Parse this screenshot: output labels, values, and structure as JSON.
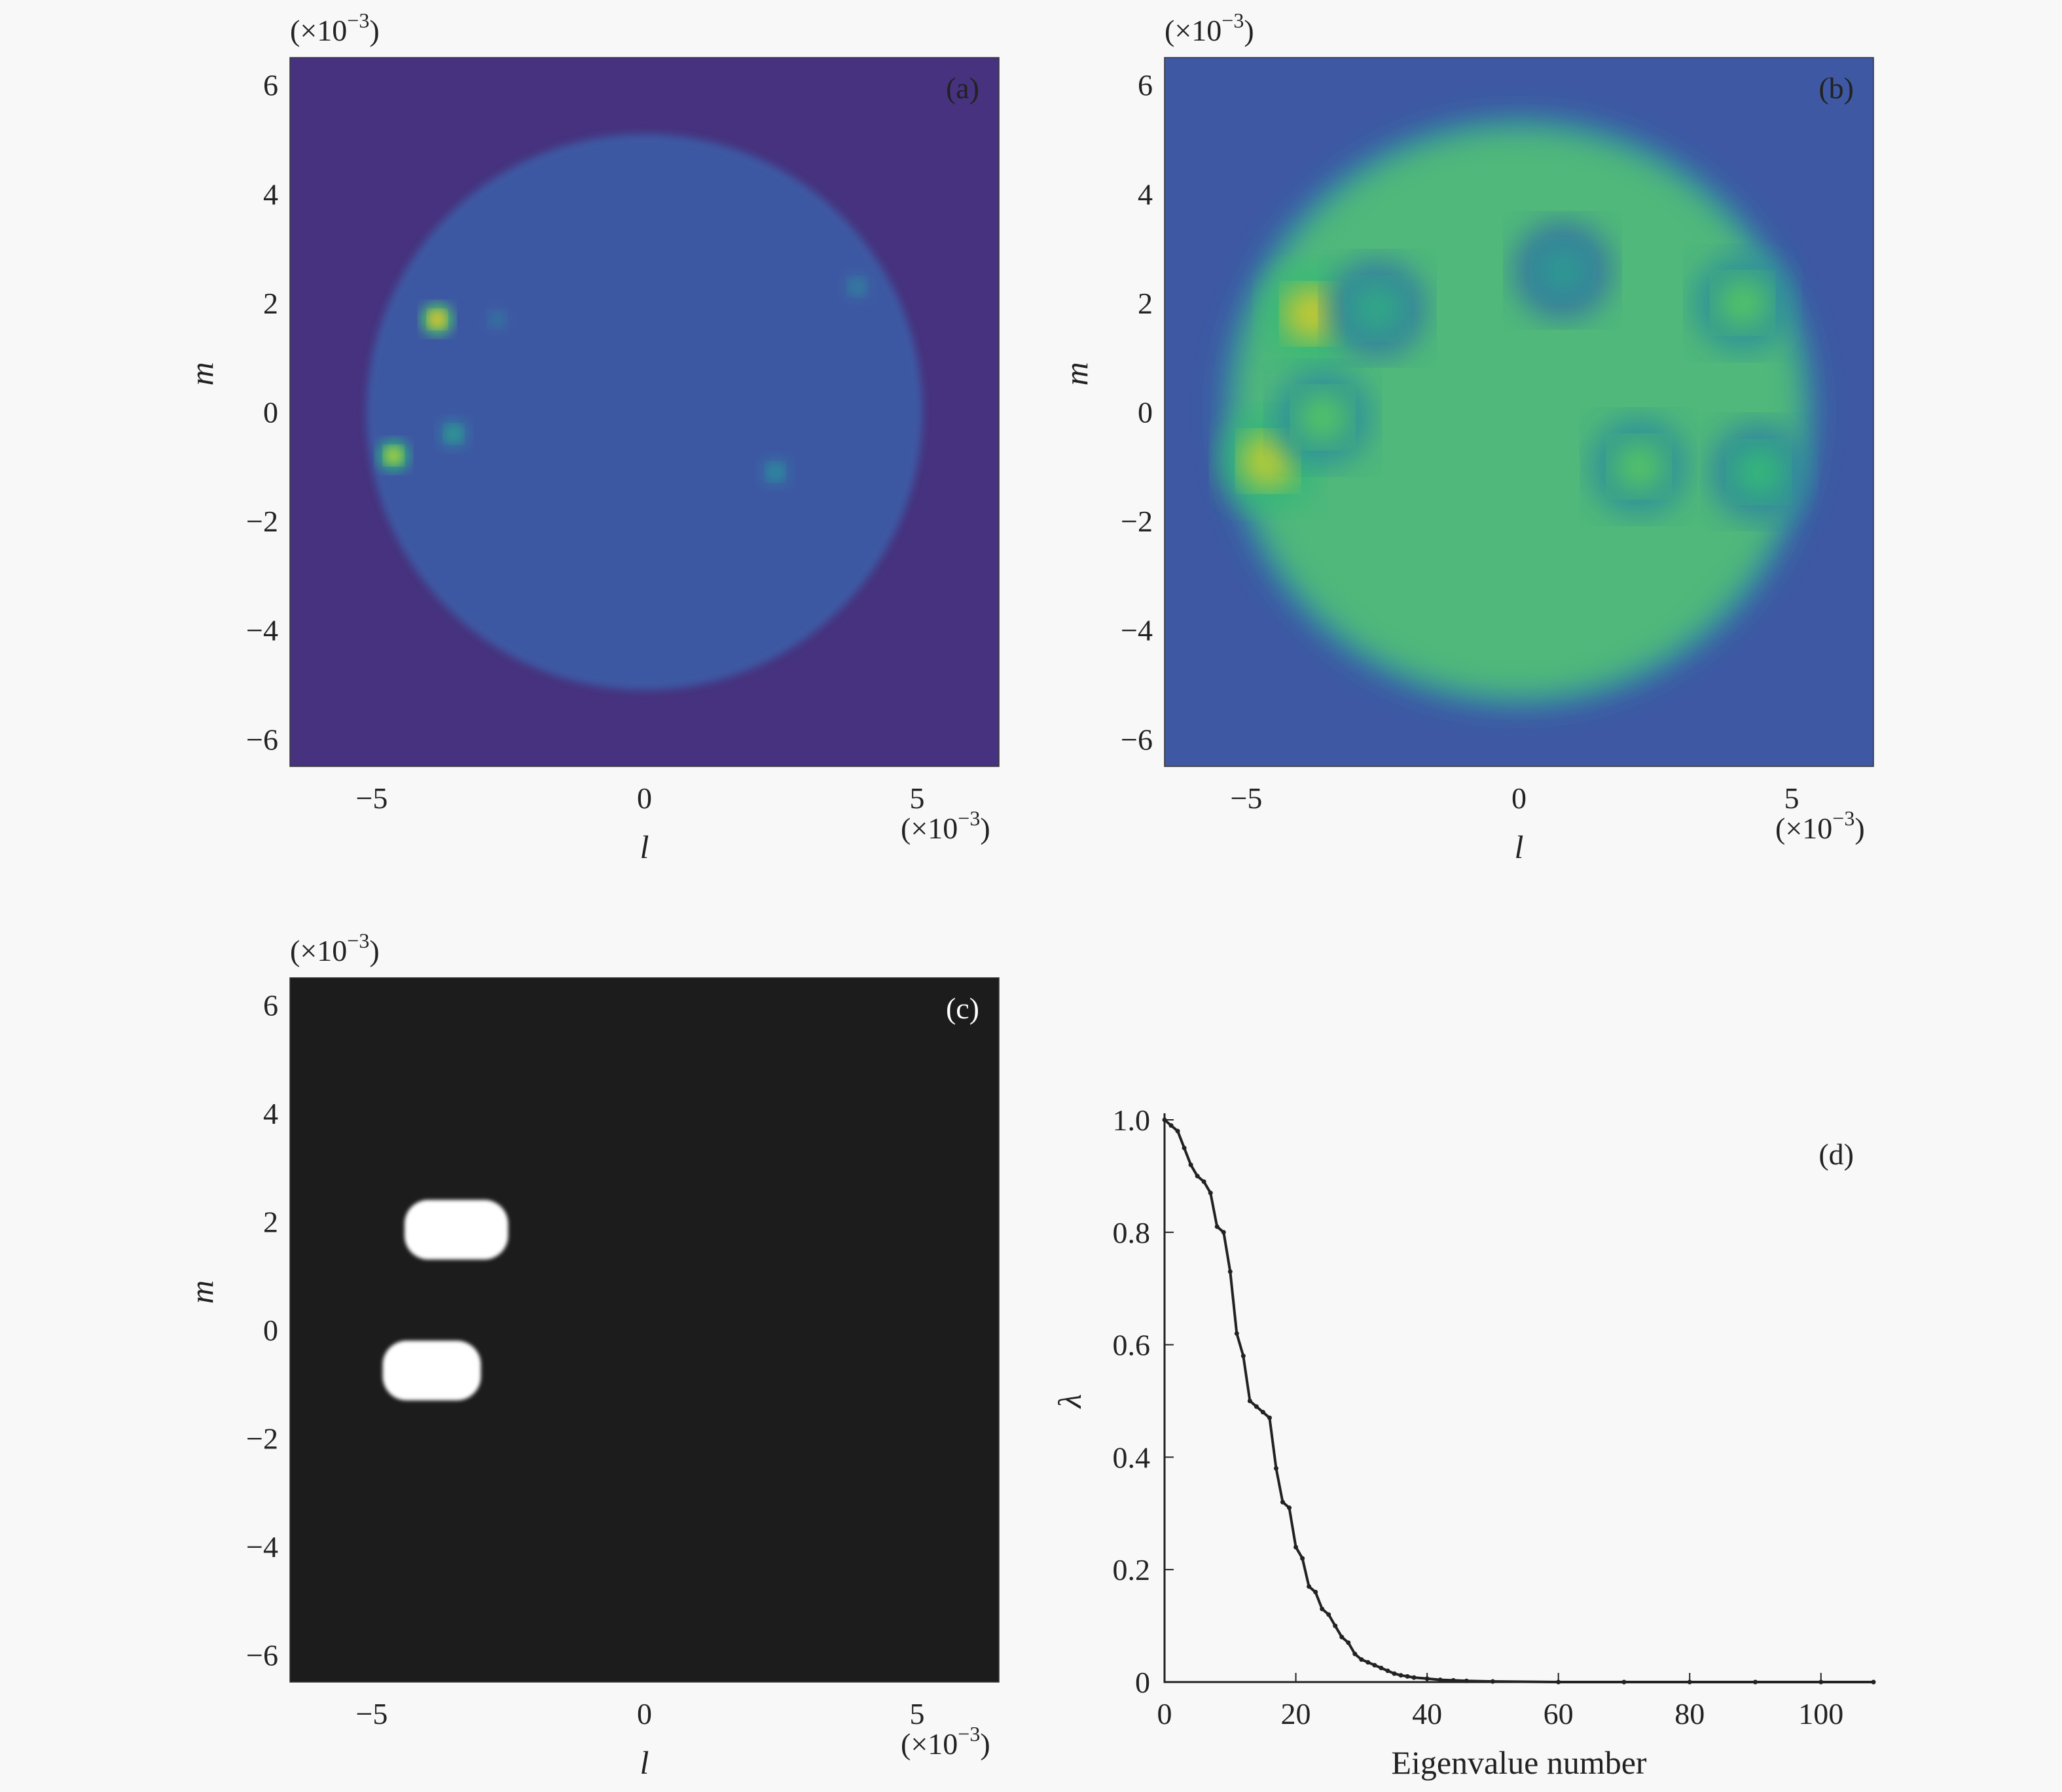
{
  "colors": {
    "background": "#f8f8f8",
    "viridis_dark": "#46327e",
    "disc_blue": "#3e58a3",
    "binary_bg": "#1c1c1c",
    "binary_fg": "#ffffff",
    "curve": "#222222"
  },
  "chart_data": [
    {
      "id": "a",
      "type": "heatmap",
      "panel_label": "(a)",
      "xlabel": "l",
      "ylabel": "m",
      "x_multiplier": "(×10−3)",
      "y_multiplier": "(×10−3)",
      "x_ticks": [
        "−5",
        "0",
        "5"
      ],
      "y_ticks": [
        "6",
        "4",
        "2",
        "0",
        "−2",
        "−4",
        "−6"
      ],
      "xlim": [
        -6.5,
        6.5
      ],
      "ylim": [
        -6.5,
        6.5
      ],
      "colormap": "viridis",
      "disc": {
        "center": [
          0,
          0
        ],
        "radius": 5.1
      },
      "hotspots": [
        {
          "l": -3.8,
          "m": 1.7,
          "level": 0.85
        },
        {
          "l": -4.6,
          "m": -0.8,
          "level": 0.75
        },
        {
          "l": -3.5,
          "m": -0.4,
          "level": 0.45
        },
        {
          "l": 2.4,
          "m": -1.1,
          "level": 0.4
        },
        {
          "l": 3.9,
          "m": 2.3,
          "level": 0.35
        },
        {
          "l": -2.7,
          "m": 1.7,
          "level": 0.3
        }
      ]
    },
    {
      "id": "b",
      "type": "heatmap",
      "panel_label": "(b)",
      "xlabel": "l",
      "ylabel": "m",
      "x_multiplier": "(×10−3)",
      "y_multiplier": "(×10−3)",
      "x_ticks": [
        "−5",
        "0",
        "5"
      ],
      "y_ticks": [
        "6",
        "4",
        "2",
        "0",
        "−2",
        "−4",
        "−6"
      ],
      "xlim": [
        -6.5,
        6.5
      ],
      "ylim": [
        -6.5,
        6.5
      ],
      "colormap": "viridis",
      "disc": {
        "center": [
          0,
          0
        ],
        "radius": 5.2
      },
      "hotspots": [
        {
          "l": -3.8,
          "m": 1.8,
          "level": 0.8
        },
        {
          "l": -4.6,
          "m": -0.9,
          "level": 0.78
        },
        {
          "l": -3.6,
          "m": -0.1,
          "level": 0.6
        },
        {
          "l": 2.2,
          "m": -1.0,
          "level": 0.6
        },
        {
          "l": 4.1,
          "m": 2.0,
          "level": 0.6
        },
        {
          "l": 4.4,
          "m": -1.1,
          "level": 0.55
        },
        {
          "l": -2.6,
          "m": 1.9,
          "level": 0.5
        },
        {
          "l": 0.8,
          "m": 2.6,
          "level": 0.45
        }
      ]
    },
    {
      "id": "c",
      "type": "heatmap",
      "panel_label": "(c)",
      "xlabel": "l",
      "ylabel": "m",
      "x_multiplier": "(×10−3)",
      "y_multiplier": "(×10−3)",
      "x_ticks": [
        "−5",
        "0",
        "5"
      ],
      "y_ticks": [
        "6",
        "4",
        "2",
        "0",
        "−2",
        "−4",
        "−6"
      ],
      "xlim": [
        -6.5,
        6.5
      ],
      "ylim": [
        -6.5,
        6.5
      ],
      "colormap": "binary",
      "regions": [
        {
          "l_range": [
            -4.4,
            -2.5
          ],
          "m_range": [
            1.3,
            2.4
          ]
        },
        {
          "l_range": [
            -4.8,
            -3.0
          ],
          "m_range": [
            -1.3,
            -0.2
          ]
        }
      ]
    },
    {
      "id": "d",
      "type": "line",
      "panel_label": "(d)",
      "xlabel": "Eigenvalue number",
      "ylabel": "λ",
      "x_ticks": [
        "0",
        "20",
        "40",
        "60",
        "80",
        "100"
      ],
      "y_ticks": [
        "1.0",
        "0.8",
        "0.6",
        "0.4",
        "0.2",
        "0"
      ],
      "xlim": [
        0,
        108
      ],
      "ylim": [
        0,
        1.0
      ],
      "series": [
        {
          "x": [
            0,
            1,
            2,
            3,
            4,
            5,
            6,
            7,
            8,
            9,
            10,
            11,
            12,
            13,
            14,
            15,
            16,
            17,
            18,
            19,
            20,
            21,
            22,
            23,
            24,
            25,
            26,
            27,
            28,
            29,
            30,
            31,
            32,
            33,
            34,
            35,
            36,
            37,
            38,
            40,
            42,
            44,
            46,
            50,
            60,
            70,
            80,
            90,
            100,
            108
          ],
          "y": [
            1.0,
            0.99,
            0.98,
            0.95,
            0.92,
            0.9,
            0.89,
            0.87,
            0.81,
            0.8,
            0.73,
            0.62,
            0.58,
            0.5,
            0.49,
            0.48,
            0.47,
            0.38,
            0.32,
            0.31,
            0.24,
            0.22,
            0.17,
            0.16,
            0.13,
            0.12,
            0.1,
            0.08,
            0.07,
            0.05,
            0.04,
            0.035,
            0.03,
            0.025,
            0.02,
            0.015,
            0.012,
            0.01,
            0.008,
            0.006,
            0.004,
            0.003,
            0.002,
            0.001,
            0.0,
            0.0,
            0.0,
            0.0,
            0.0,
            0.0
          ]
        }
      ]
    }
  ]
}
